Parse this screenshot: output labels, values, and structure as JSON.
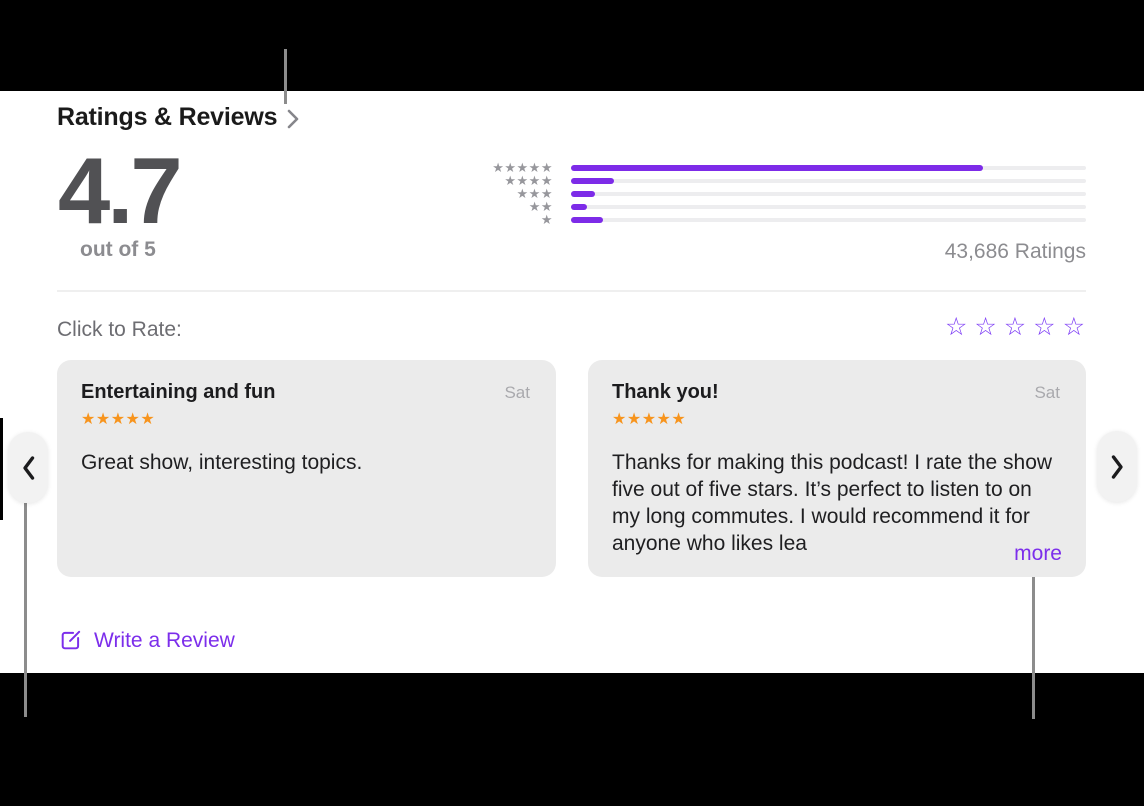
{
  "header": {
    "title": "Ratings & Reviews"
  },
  "summary": {
    "score": "4.7",
    "score_caption": "out of 5",
    "ratings_count": "43,686 Ratings",
    "histogram": {
      "type": "bar",
      "rows": [
        {
          "stars": 5,
          "percent": 80
        },
        {
          "stars": 4,
          "percent": 8.3
        },
        {
          "stars": 3,
          "percent": 4.6
        },
        {
          "stars": 2,
          "percent": 3.1
        },
        {
          "stars": 1,
          "percent": 6.3
        }
      ]
    }
  },
  "rate_row": {
    "label": "Click to Rate:",
    "max_stars": 5
  },
  "reviews": [
    {
      "title": "Entertaining and fun",
      "date": "Sat",
      "stars": 5,
      "body": "Great show, interesting topics.",
      "more_label": ""
    },
    {
      "title": "Thank you!",
      "date": "Sat",
      "stars": 5,
      "body": "Thanks for making this podcast! I rate the show five out of five stars. It’s perfect to listen to on my long commutes. I would recommend it for anyone who likes lea",
      "more_label": "more"
    }
  ],
  "write_review": {
    "label": "Write a Review"
  },
  "icons": {
    "header_chevron": "chevron-right",
    "write_review": "square-and-pencil",
    "scroll_left": "chevron-left",
    "scroll_right": "chevron-right"
  },
  "colors": {
    "accent_purple": "#7d2be8",
    "link_purple": "#7c2eeb",
    "rate_star_purple": "#7c3bf5",
    "star_orange": "#f7941d",
    "card_background": "#ebebeb",
    "histogram_star_gray": "#97979c",
    "callout_gray": "#8c8c8c"
  }
}
